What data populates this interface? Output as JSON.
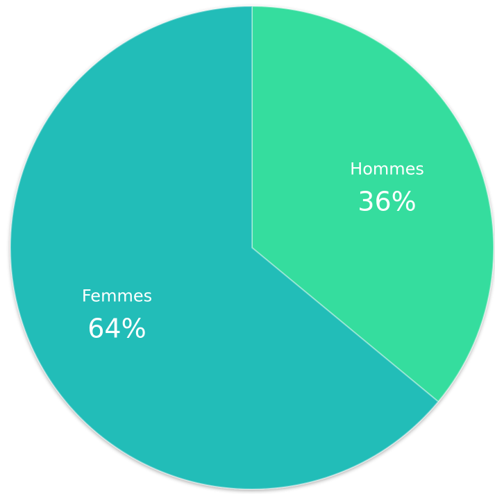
{
  "chart_data": {
    "type": "pie",
    "categories": [
      "Hommes",
      "Femmes"
    ],
    "values": [
      36,
      64
    ],
    "value_labels": [
      "36%",
      "64%"
    ],
    "colors": [
      "#35dd9e",
      "#22bdb8"
    ],
    "start_angle_deg": 0,
    "direction": "clockwise",
    "title": ""
  }
}
